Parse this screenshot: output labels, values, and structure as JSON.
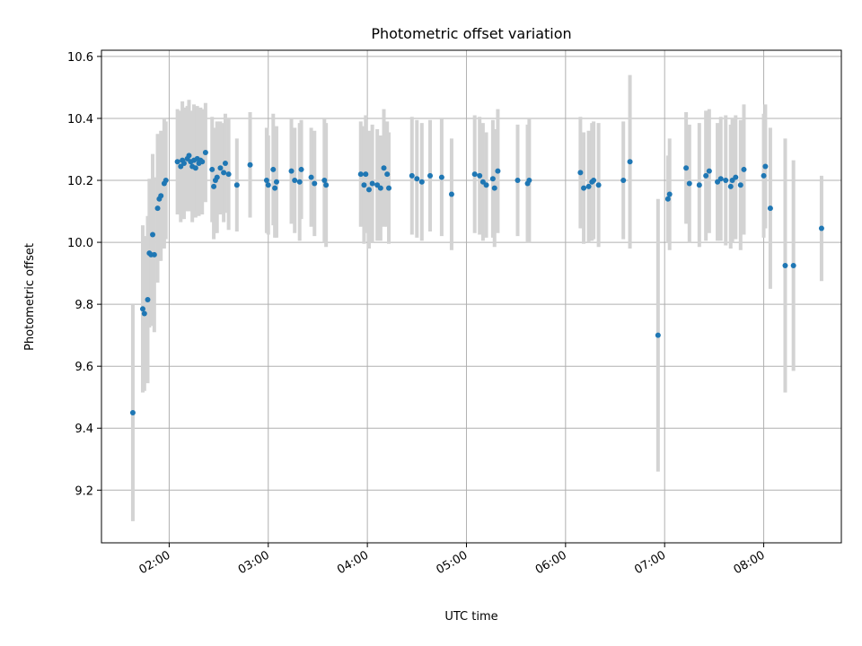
{
  "chart_data": {
    "type": "scatter",
    "title": "Photometric offset variation",
    "xlabel": "UTC time",
    "ylabel": "Photometric offset",
    "grid": true,
    "x_unit": "time of day (HH:MM)",
    "xlim": [
      "01:19",
      "08:47"
    ],
    "ylim": [
      9.03,
      10.62
    ],
    "x_ticks": [
      "02:00",
      "03:00",
      "04:00",
      "05:00",
      "06:00",
      "07:00",
      "08:00"
    ],
    "y_ticks": [
      "9.2",
      "9.4",
      "9.6",
      "9.8",
      "10.0",
      "10.2",
      "10.4",
      "10.6"
    ],
    "colors": {
      "points": "#1f77b4",
      "errorbars": "#d3d3d3",
      "grid": "#b0b0b0"
    },
    "series": [
      {
        "x": [
          "01:38",
          "01:44",
          "01:45",
          "01:47",
          "01:48",
          "01:49",
          "01:50",
          "01:51",
          "01:53",
          "01:54",
          "01:55",
          "01:57",
          "01:58",
          "02:05",
          "02:07",
          "02:08",
          "02:09",
          "02:11",
          "02:12",
          "02:13",
          "02:14",
          "02:15",
          "02:16",
          "02:17",
          "02:18",
          "02:19",
          "02:20",
          "02:22",
          "02:26",
          "02:27",
          "02:28",
          "02:29",
          "02:31",
          "02:33",
          "02:34",
          "02:36",
          "02:41",
          "02:49",
          "02:59",
          "03:00",
          "03:03",
          "03:04",
          "03:05",
          "03:14",
          "03:16",
          "03:19",
          "03:20",
          "03:26",
          "03:28",
          "03:34",
          "03:35",
          "03:56",
          "03:58",
          "03:59",
          "04:01",
          "04:03",
          "04:06",
          "04:08",
          "04:10",
          "04:12",
          "04:13",
          "04:27",
          "04:30",
          "04:33",
          "04:38",
          "04:45",
          "04:51",
          "05:05",
          "05:08",
          "05:10",
          "05:12",
          "05:16",
          "05:17",
          "05:19",
          "05:31",
          "05:37",
          "05:38",
          "06:09",
          "06:11",
          "06:14",
          "06:16",
          "06:17",
          "06:20",
          "06:35",
          "06:39",
          "06:56",
          "07:02",
          "07:03",
          "07:13",
          "07:15",
          "07:21",
          "07:25",
          "07:27",
          "07:32",
          "07:34",
          "07:37",
          "07:40",
          "07:41",
          "07:43",
          "07:46",
          "07:48",
          "08:00",
          "08:01",
          "08:04",
          "08:13",
          "08:18",
          "08:35"
        ],
        "y": [
          9.45,
          9.785,
          9.77,
          9.815,
          9.965,
          9.96,
          10.025,
          9.96,
          10.11,
          10.14,
          10.15,
          10.19,
          10.2,
          10.26,
          10.245,
          10.265,
          10.255,
          10.27,
          10.28,
          10.26,
          10.245,
          10.265,
          10.24,
          10.27,
          10.255,
          10.265,
          10.26,
          10.29,
          10.235,
          10.18,
          10.2,
          10.21,
          10.24,
          10.225,
          10.255,
          10.22,
          10.185,
          10.25,
          10.2,
          10.185,
          10.235,
          10.175,
          10.195,
          10.23,
          10.2,
          10.195,
          10.235,
          10.21,
          10.19,
          10.2,
          10.185,
          10.22,
          10.185,
          10.22,
          10.17,
          10.19,
          10.185,
          10.175,
          10.24,
          10.22,
          10.175,
          10.215,
          10.205,
          10.195,
          10.215,
          10.21,
          10.155,
          10.22,
          10.215,
          10.195,
          10.185,
          10.205,
          10.175,
          10.23,
          10.2,
          10.19,
          10.2,
          10.225,
          10.175,
          10.18,
          10.195,
          10.2,
          10.185,
          10.2,
          10.26,
          9.7,
          10.14,
          10.155,
          10.24,
          10.19,
          10.185,
          10.215,
          10.23,
          10.195,
          10.205,
          10.2,
          10.18,
          10.2,
          10.21,
          10.185,
          10.235,
          10.215,
          10.245,
          10.11,
          9.925,
          9.925,
          10.045
        ],
        "err": [
          0.35,
          0.27,
          0.25,
          0.27,
          0.24,
          0.23,
          0.26,
          0.25,
          0.24,
          0.2,
          0.21,
          0.21,
          0.19,
          0.17,
          0.18,
          0.19,
          0.18,
          0.17,
          0.18,
          0.16,
          0.18,
          0.18,
          0.16,
          0.17,
          0.17,
          0.17,
          0.17,
          0.16,
          0.17,
          0.17,
          0.17,
          0.18,
          0.15,
          0.16,
          0.16,
          0.18,
          0.15,
          0.17,
          0.17,
          0.16,
          0.18,
          0.16,
          0.18,
          0.17,
          0.17,
          0.19,
          0.16,
          0.16,
          0.17,
          0.2,
          0.2,
          0.17,
          0.19,
          0.19,
          0.19,
          0.19,
          0.18,
          0.17,
          0.19,
          0.17,
          0.18,
          0.19,
          0.19,
          0.19,
          0.18,
          0.19,
          0.18,
          0.19,
          0.19,
          0.19,
          0.17,
          0.19,
          0.19,
          0.2,
          0.18,
          0.19,
          0.2,
          0.18,
          0.18,
          0.18,
          0.19,
          0.19,
          0.2,
          0.19,
          0.28,
          0.44,
          0.14,
          0.18,
          0.18,
          0.19,
          0.2,
          0.21,
          0.2,
          0.19,
          0.2,
          0.21,
          0.2,
          0.2,
          0.2,
          0.21,
          0.21,
          0.2,
          0.2,
          0.26,
          0.41,
          0.34,
          0.17
        ]
      }
    ]
  }
}
